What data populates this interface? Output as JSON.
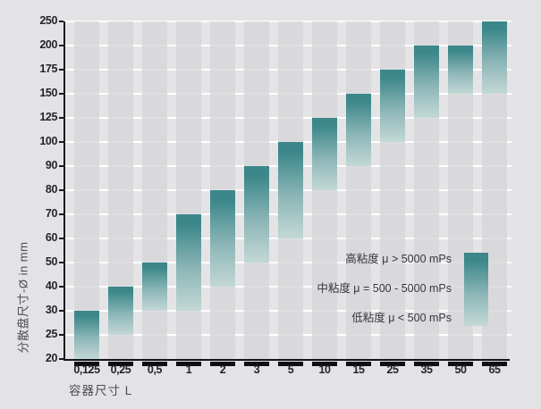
{
  "chart_data": {
    "type": "bar",
    "variant": "floating-range-bars",
    "title": "",
    "xlabel": "容器尺寸 L",
    "ylabel": "分散盘尺寸-Ø in mm",
    "categories": [
      "0,125",
      "0,25",
      "0,5",
      "1",
      "2",
      "3",
      "5",
      "10",
      "15",
      "25",
      "35",
      "50",
      "65"
    ],
    "yticks": [
      20,
      25,
      30,
      40,
      50,
      60,
      70,
      80,
      90,
      100,
      125,
      150,
      175,
      200,
      250
    ],
    "y_scale": "ordinal-evenly-spaced-ticks",
    "grid": "horizontal-white-lines",
    "bars": [
      {
        "category": "0,125",
        "from": 20,
        "to": 30
      },
      {
        "category": "0,25",
        "from": 25,
        "to": 40
      },
      {
        "category": "0,5",
        "from": 30,
        "to": 50
      },
      {
        "category": "1",
        "from": 30,
        "to": 70
      },
      {
        "category": "2",
        "from": 40,
        "to": 80
      },
      {
        "category": "3",
        "from": 50,
        "to": 90
      },
      {
        "category": "5",
        "from": 60,
        "to": 100
      },
      {
        "category": "10",
        "from": 80,
        "to": 125
      },
      {
        "category": "15",
        "from": 90,
        "to": 150
      },
      {
        "category": "25",
        "from": 100,
        "to": 175
      },
      {
        "category": "35",
        "from": 125,
        "to": 200
      },
      {
        "category": "50",
        "from": 150,
        "to": 200
      },
      {
        "category": "65",
        "from": 150,
        "to": 250
      }
    ],
    "legend": [
      {
        "id": "high-viscosity",
        "label": "高粘度 μ > 5000 mPs"
      },
      {
        "id": "medium-viscosity",
        "label": "中粘度 μ = 500 - 5000 mPs"
      },
      {
        "id": "low-viscosity",
        "label": "低粘度 μ < 500 mPs"
      }
    ],
    "legend_swatch": "vertical-gradient-bar",
    "legend_position": "inside-plot-lower-right",
    "colors": {
      "bar_top": "#3b878a",
      "bar_mid": "#8fb7b8",
      "bar_bottom": "#c3d8d6",
      "band": "#d6d6d9",
      "plot_bg": "#e4e4e6",
      "outer_bg": "#e3e3e5",
      "gridline": "#ffffff",
      "axis": "#1a1a1c",
      "tick_text": "#23242c",
      "title_text": "#4c4c50"
    }
  }
}
